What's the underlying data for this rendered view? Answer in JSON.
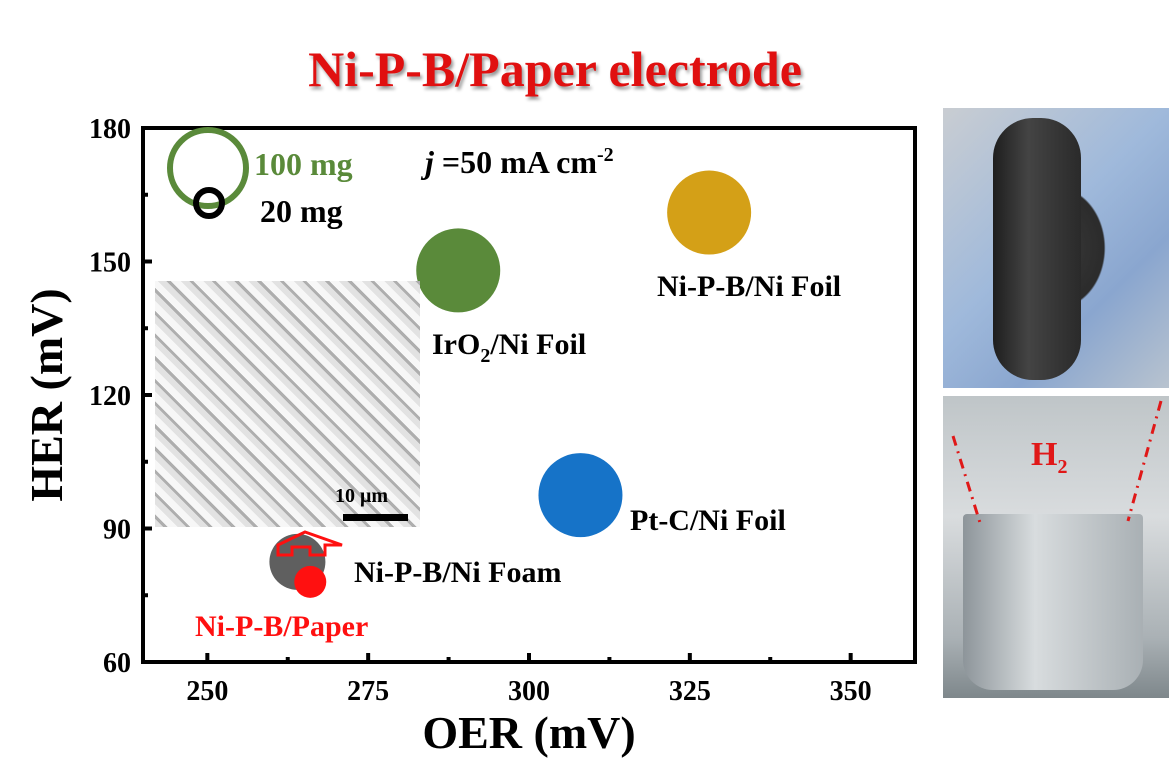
{
  "title": "Ni-P-B/Paper electrode",
  "chart_data": {
    "type": "scatter",
    "title": "Ni-P-B/Paper electrode",
    "xlabel": "OER (mV)",
    "ylabel": "HER (mV)",
    "xlim": [
      240,
      360
    ],
    "ylim": [
      60,
      180
    ],
    "xticks": [
      250,
      275,
      300,
      325,
      350
    ],
    "yticks": [
      60,
      90,
      120,
      150,
      180
    ],
    "grid": false,
    "annotation": "j =50 mA cm-2",
    "annotation_parts": {
      "j": "j",
      "rest": " =50 mA cm",
      "sup": "-2"
    },
    "points": [
      {
        "name": "Ni-P-B/Ni Foil",
        "x": 328,
        "y": 161,
        "color": "#d4a017",
        "label_pos": "below"
      },
      {
        "name": "IrO2/Ni Foil",
        "label_main": "IrO",
        "label_sub": "2",
        "label_tail": "/Ni Foil",
        "x": 289,
        "y": 148,
        "color": "#5a8a3a"
      },
      {
        "name": "Pt-C/Ni Foil",
        "x": 308,
        "y": 97.5,
        "color": "#1673c8"
      },
      {
        "name": "Ni-P-B/Ni Foam",
        "x": 264,
        "y": 82.5,
        "color": "#5f5f5f"
      },
      {
        "name": "Ni-P-B/Paper",
        "x": 266,
        "y": 78,
        "color": "#ff1010"
      }
    ],
    "mass_legend": [
      {
        "label": "100 mg",
        "color": "#5a8a3a"
      },
      {
        "label": "20 mg",
        "color": "#000000"
      }
    ]
  },
  "inset": {
    "scale_label": "10 μm"
  },
  "photo": {
    "gas_label": "H",
    "gas_sub": "2"
  },
  "colors": {
    "title": "#e01010",
    "arrow": "#ff1010"
  }
}
